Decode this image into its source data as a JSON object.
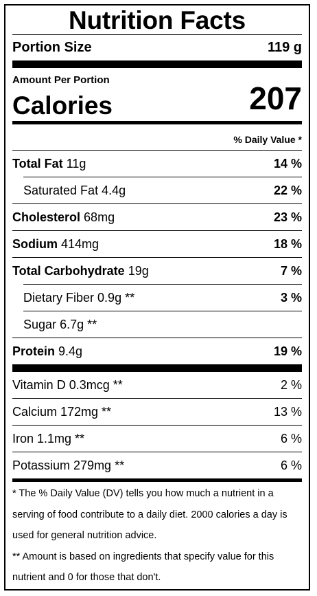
{
  "title": "Nutrition Facts",
  "portion": {
    "label": "Portion Size",
    "value": "119 g"
  },
  "amount_per_portion": "Amount Per Portion",
  "calories": {
    "label": "Calories",
    "value": "207"
  },
  "daily_value_header": "% Daily Value *",
  "nutrients": [
    {
      "name": "Total Fat",
      "amount": "11g",
      "dv": "14 %"
    },
    {
      "name": "Saturated Fat",
      "amount": "4.4g",
      "dv": "22 %"
    },
    {
      "name": "Cholesterol",
      "amount": "68mg",
      "dv": "23 %"
    },
    {
      "name": "Sodium",
      "amount": "414mg",
      "dv": "18 %"
    },
    {
      "name": "Total Carbohydrate",
      "amount": "19g",
      "dv": "7 %"
    },
    {
      "name": "Dietary Fiber",
      "amount": "0.9g **",
      "dv": "3 %"
    },
    {
      "name": "Sugar",
      "amount": "6.7g **",
      "dv": ""
    },
    {
      "name": "Protein",
      "amount": "9.4g",
      "dv": "19 %"
    }
  ],
  "vitamins": [
    {
      "text": "Vitamin D 0.3mcg **",
      "dv": "2 %"
    },
    {
      "text": "Calcium 172mg **",
      "dv": "13 %"
    },
    {
      "text": "Iron 1.1mg **",
      "dv": "6 %"
    },
    {
      "text": "Potassium 279mg **",
      "dv": "6 %"
    }
  ],
  "footnotes": {
    "note1": "* The % Daily Value (DV) tells you how much a nutrient in a serving of food contribute to a daily diet. 2000 calories a day is used for general nutrition advice.",
    "note2": "** Amount is based on ingredients that specify value for this nutrient and 0 for those that don't."
  }
}
